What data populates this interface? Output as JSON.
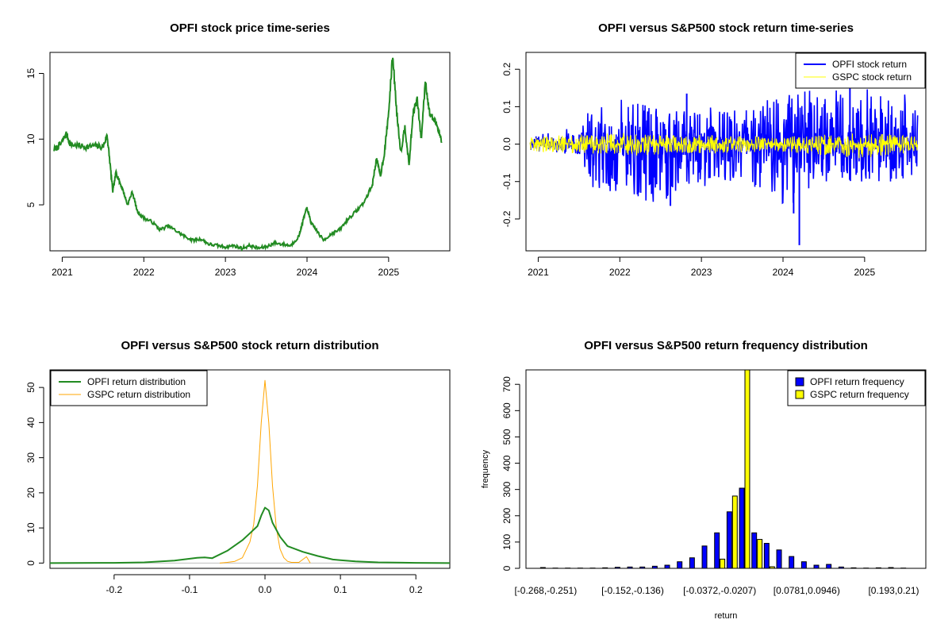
{
  "colors": {
    "price": "#228b22",
    "opfi_return": "#0000ff",
    "gspc_return": "#ffff00",
    "opfi_density": "#228b22",
    "gspc_density": "#ffa500",
    "opfi_bar": "#0000ff",
    "gspc_bar": "#ffff00"
  },
  "chart_data": [
    {
      "type": "line",
      "title": "OPFI stock price time-series",
      "xlabel": "",
      "ylabel": "",
      "xlim": [
        2020.85,
        2025.75
      ],
      "ylim": [
        1.5,
        16.6
      ],
      "xticks": [
        2021,
        2022,
        2023,
        2024,
        2025
      ],
      "xtick_labels": [
        "2021",
        "2022",
        "2023",
        "2024",
        "2025"
      ],
      "yticks": [
        5,
        10,
        15
      ],
      "ytick_labels": [
        "5",
        "10",
        "15"
      ],
      "series": [
        {
          "x": [
            2020.9,
            2020.98,
            2021.05,
            2021.1,
            2021.2,
            2021.3,
            2021.4,
            2021.5,
            2021.55,
            2021.58,
            2021.62,
            2021.66,
            2021.7,
            2021.75,
            2021.8,
            2021.86,
            2021.92,
            2022.0,
            2022.1,
            2022.2,
            2022.3,
            2022.4,
            2022.5,
            2022.6,
            2022.7,
            2022.8,
            2022.9,
            2023.0,
            2023.1,
            2023.2,
            2023.3,
            2023.4,
            2023.5,
            2023.6,
            2023.7,
            2023.8,
            2023.9,
            2023.95,
            2024.0,
            2024.05,
            2024.1,
            2024.2,
            2024.3,
            2024.4,
            2024.5,
            2024.6,
            2024.7,
            2024.8,
            2024.85,
            2024.9,
            2024.95,
            2025.0,
            2025.05,
            2025.1,
            2025.15,
            2025.2,
            2025.25,
            2025.3,
            2025.35,
            2025.4,
            2025.45,
            2025.5,
            2025.55,
            2025.6,
            2025.65
          ],
          "y": [
            9.2,
            9.6,
            10.4,
            9.6,
            9.5,
            9.4,
            9.5,
            9.4,
            10.3,
            8.5,
            6.0,
            7.5,
            6.8,
            6.0,
            5.0,
            6.0,
            4.5,
            4.0,
            3.7,
            3.1,
            3.4,
            3.0,
            2.6,
            2.3,
            2.4,
            2.0,
            1.9,
            1.8,
            1.9,
            1.7,
            1.9,
            1.7,
            1.8,
            2.1,
            2.0,
            1.9,
            2.6,
            3.8,
            4.8,
            3.6,
            3.2,
            2.3,
            2.8,
            3.1,
            3.9,
            4.5,
            5.2,
            6.5,
            8.5,
            7.2,
            9.0,
            12.0,
            16.4,
            12.0,
            9.0,
            11.0,
            8.0,
            12.0,
            13.0,
            10.0,
            14.5,
            12.0,
            11.5,
            11.0,
            9.8
          ],
          "color": "#228b22"
        }
      ]
    },
    {
      "type": "line",
      "title": "OPFI versus S&P500 stock return time-series",
      "xlabel": "",
      "ylabel": "",
      "xlim": [
        2020.85,
        2025.75
      ],
      "ylim": [
        -0.285,
        0.245
      ],
      "xticks": [
        2021,
        2022,
        2023,
        2024,
        2025
      ],
      "xtick_labels": [
        "2021",
        "2022",
        "2023",
        "2024",
        "2025"
      ],
      "yticks": [
        -0.2,
        -0.1,
        0.0,
        0.1,
        0.2
      ],
      "ytick_labels": [
        "-0.2",
        "-0.1",
        "0.0",
        "0.1",
        "0.2"
      ],
      "legend": [
        "OPFI stock return",
        "GSPC stock return"
      ],
      "legend_position": "top-right",
      "series": [
        {
          "name": "OPFI stock return",
          "color": "#0000ff",
          "envelope_x": [
            2020.9,
            2021.55,
            2021.56,
            2022.0,
            2022.5,
            2023.0,
            2023.5,
            2024.0,
            2024.5,
            2025.0,
            2025.5,
            2025.65
          ],
          "envelope_max": [
            0.02,
            0.05,
            0.08,
            0.12,
            0.1,
            0.1,
            0.1,
            0.13,
            0.15,
            0.15,
            0.14,
            0.1
          ],
          "envelope_min": [
            -0.02,
            -0.03,
            -0.11,
            -0.14,
            -0.16,
            -0.12,
            -0.09,
            -0.18,
            -0.1,
            -0.1,
            -0.1,
            -0.08
          ],
          "spikes": [
            {
              "x": 2024.2,
              "y": -0.27
            },
            {
              "x": 2024.13,
              "y": -0.185
            },
            {
              "x": 2022.62,
              "y": -0.165
            },
            {
              "x": 2022.82,
              "y": 0.135
            },
            {
              "x": 2024.82,
              "y": 0.15
            }
          ]
        },
        {
          "name": "GSPC stock return",
          "color": "#ffff00",
          "envelope_x": [
            2020.9,
            2022.0,
            2023.0,
            2024.0,
            2025.0,
            2025.65
          ],
          "envelope_max": [
            0.02,
            0.03,
            0.025,
            0.02,
            0.03,
            0.02
          ],
          "envelope_min": [
            -0.02,
            -0.03,
            -0.025,
            -0.02,
            -0.04,
            -0.02
          ]
        }
      ]
    },
    {
      "type": "line",
      "title": "OPFI versus S&P500 stock return distribution",
      "xlabel": "",
      "ylabel": "",
      "xlim": [
        -0.285,
        0.245
      ],
      "ylim": [
        -1.5,
        55
      ],
      "xticks": [
        -0.2,
        -0.1,
        0.0,
        0.1,
        0.2
      ],
      "xtick_labels": [
        "-0.2",
        "-0.1",
        "0.0",
        "0.1",
        "0.2"
      ],
      "yticks": [
        0,
        10,
        20,
        30,
        40,
        50
      ],
      "ytick_labels": [
        "0",
        "10",
        "20",
        "30",
        "40",
        "50"
      ],
      "legend": [
        "OPFI return distribution",
        "GSPC return distribution"
      ],
      "legend_position": "top-left",
      "series": [
        {
          "name": "OPFI return distribution",
          "color": "#228b22",
          "x": [
            -0.285,
            -0.2,
            -0.16,
            -0.12,
            -0.09,
            -0.08,
            -0.07,
            -0.05,
            -0.03,
            -0.02,
            -0.01,
            -0.005,
            0.0,
            0.005,
            0.01,
            0.02,
            0.03,
            0.05,
            0.07,
            0.09,
            0.1,
            0.12,
            0.15,
            0.2,
            0.245
          ],
          "y": [
            0,
            0.05,
            0.2,
            0.7,
            1.5,
            1.6,
            1.4,
            3.5,
            6.5,
            8.5,
            10.5,
            13.5,
            15.8,
            15.0,
            11.5,
            7.5,
            4.8,
            3.2,
            2.0,
            1.0,
            0.8,
            0.5,
            0.2,
            0.05,
            0
          ]
        },
        {
          "name": "GSPC return distribution",
          "color": "#ffa500",
          "x": [
            -0.06,
            -0.05,
            -0.04,
            -0.03,
            -0.02,
            -0.015,
            -0.01,
            -0.005,
            0.0,
            0.005,
            0.01,
            0.015,
            0.02,
            0.025,
            0.03,
            0.035,
            0.045,
            0.055,
            0.06
          ],
          "y": [
            0,
            0.2,
            0.5,
            1.5,
            6.0,
            11.0,
            22.0,
            40.0,
            52.0,
            40.0,
            22.0,
            10.0,
            4.0,
            1.5,
            0.5,
            0.2,
            0.2,
            1.8,
            0
          ]
        }
      ]
    },
    {
      "type": "bar",
      "title": "OPFI versus S&P500 return frequency distribution",
      "xlabel": "return",
      "ylabel": "frequency",
      "ylim": [
        0,
        755
      ],
      "yticks": [
        0,
        100,
        200,
        300,
        400,
        500,
        600,
        700
      ],
      "ytick_labels": [
        "0",
        "100",
        "200",
        "300",
        "400",
        "500",
        "600",
        "700"
      ],
      "xtick_labels": [
        "[-0.268,-0.251)",
        "[-0.152,-0.136)",
        "[-0.0372,-0.0207)",
        "[0.0781,0.0946)",
        "[0.193,0.21)"
      ],
      "xtick_bins": [
        1,
        8,
        15,
        22,
        29
      ],
      "legend": [
        "OPFI return frequency",
        "GSPC return frequency"
      ],
      "legend_position": "top-right",
      "categories_count": 30,
      "series": [
        {
          "name": "OPFI return frequency",
          "color": "#0000ff",
          "values": [
            3,
            1,
            1,
            1,
            1,
            2,
            4,
            5,
            5,
            8,
            12,
            25,
            40,
            85,
            135,
            215,
            305,
            135,
            95,
            70,
            45,
            25,
            12,
            15,
            5,
            2,
            1,
            2,
            3,
            1
          ]
        },
        {
          "name": "GSPC return frequency",
          "color": "#ffff00",
          "values": [
            0,
            0,
            0,
            0,
            0,
            0,
            0,
            0,
            0,
            0,
            0,
            0,
            0,
            0,
            35,
            275,
            755,
            110,
            6,
            0,
            0,
            0,
            0,
            0,
            0,
            0,
            0,
            0,
            0,
            0
          ]
        }
      ]
    }
  ]
}
